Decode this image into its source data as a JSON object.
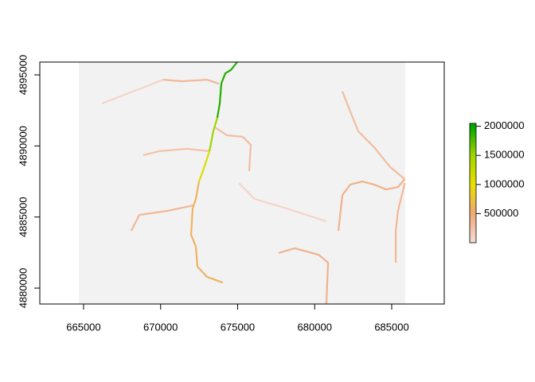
{
  "chart_data": {
    "type": "raster",
    "xlim": [
      662160,
      688410
    ],
    "ylim": [
      4878880,
      4895900
    ],
    "xticks": [
      665000,
      670000,
      675000,
      680000,
      685000
    ],
    "yticks": [
      4880000,
      4885000,
      4890000,
      4895000
    ],
    "extent": [
      664700,
      685880,
      4878880,
      4895900
    ],
    "background": "#f2f2f2",
    "colorscale": [
      [
        0,
        "#f6dcd8"
      ],
      [
        500000,
        "#f0a878"
      ],
      [
        1000000,
        "#e8e000"
      ],
      [
        1500000,
        "#a0d400"
      ],
      [
        2000000,
        "#00a600"
      ]
    ],
    "zlim": [
      0,
      2050000
    ],
    "zticks": [
      500000,
      1000000,
      1500000,
      2000000
    ],
    "streams": [
      {
        "x": [
          674970,
          674560,
          674200,
          673940,
          673840,
          673680
        ],
        "y": [
          4895900,
          4895340,
          4895110,
          4894380,
          4892990,
          4891980
        ],
        "value": 1900000
      },
      {
        "x": [
          673680,
          673420,
          673170
        ],
        "y": [
          4891980,
          4891030,
          4889630
        ],
        "value": 1500000
      },
      {
        "x": [
          673170,
          672750,
          672490
        ],
        "y": [
          4889630,
          4888230,
          4887500
        ],
        "value": 1100000
      },
      {
        "x": [
          672490,
          672290,
          672080,
          671980,
          672290,
          672390,
          673010,
          674040
        ],
        "y": [
          4887500,
          4886270,
          4885600,
          4883750,
          4882910,
          4881510,
          4880790,
          4880390
        ],
        "value": 600000
      },
      {
        "x": [
          673530,
          674300,
          675340,
          675850,
          675750
        ],
        "y": [
          4891310,
          4890750,
          4890640,
          4890080,
          4888230
        ],
        "value": 300000
      },
      {
        "x": [
          670170,
          671360,
          673010,
          673790
        ],
        "y": [
          4894660,
          4894550,
          4894660,
          4894380
        ],
        "value": 350000
      },
      {
        "x": [
          672130,
          670430,
          668620,
          668100
        ],
        "y": [
          4885820,
          4885430,
          4885150,
          4884030
        ],
        "value": 350000
      },
      {
        "x": [
          673170,
          671720,
          669910,
          668880
        ],
        "y": [
          4889630,
          4889800,
          4889630,
          4889350
        ],
        "value": 250000
      },
      {
        "x": [
          685850,
          685410,
          684640,
          683860,
          683090,
          682310,
          681800,
          681540
        ],
        "y": [
          4887670,
          4887110,
          4886940,
          4887280,
          4887500,
          4887280,
          4886550,
          4884030
        ],
        "value": 400000
      },
      {
        "x": [
          685850,
          684900,
          683860,
          682830,
          682310,
          681800
        ],
        "y": [
          4887670,
          4888510,
          4889910,
          4891030,
          4892430,
          4893830
        ],
        "value": 300000
      },
      {
        "x": [
          685850,
          685410,
          685260,
          685260
        ],
        "y": [
          4887390,
          4885430,
          4884030,
          4881790
        ],
        "value": 350000
      },
      {
        "x": [
          680760,
          680870,
          680250,
          678700,
          677660
        ],
        "y": [
          4878880,
          4881790,
          4882350,
          4882800,
          4882470
        ],
        "value": 400000
      },
      {
        "x": [
          666190,
          668880,
          670170
        ],
        "y": [
          4892990,
          4894110,
          4894660
        ],
        "value": 80000
      },
      {
        "x": [
          675080,
          676110,
          678180,
          680760
        ],
        "y": [
          4887390,
          4886270,
          4885600,
          4884700
        ],
        "value": 80000
      }
    ]
  }
}
